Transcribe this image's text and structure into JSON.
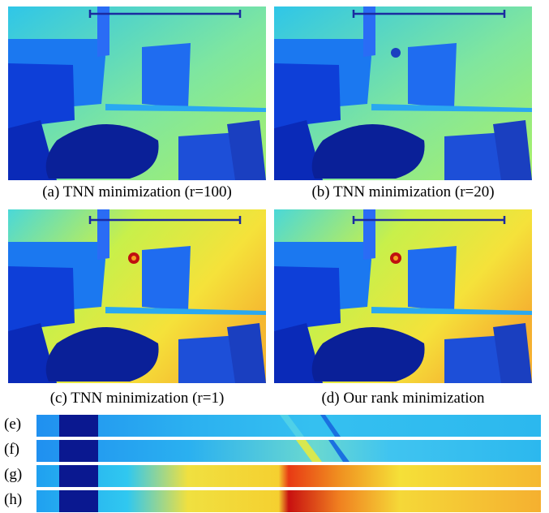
{
  "panels": [
    {
      "id": "a",
      "caption": "(a) TNN minimization (r=100)",
      "style": "cool"
    },
    {
      "id": "b",
      "caption": "(b) TNN minimization (r=20)",
      "style": "cool"
    },
    {
      "id": "c",
      "caption": "(c) TNN minimization (r=1)",
      "style": "warm"
    },
    {
      "id": "d",
      "caption": "(d) Our rank minimization",
      "style": "warm"
    }
  ],
  "strips": [
    {
      "label": "(e)",
      "style": "cool"
    },
    {
      "label": "(f)",
      "style": "cool"
    },
    {
      "label": "(g)",
      "style": "warm"
    },
    {
      "label": "(h)",
      "style": "warm"
    }
  ],
  "colors": {
    "deep_blue": "#0a1fb0",
    "blue": "#1a5cff",
    "cyan": "#22c8f0",
    "green_yellow": "#a8f060",
    "yellow": "#f5e23a",
    "orange": "#f5a020",
    "red": "#d81b1b",
    "line_marker": "#1a2aa0"
  }
}
